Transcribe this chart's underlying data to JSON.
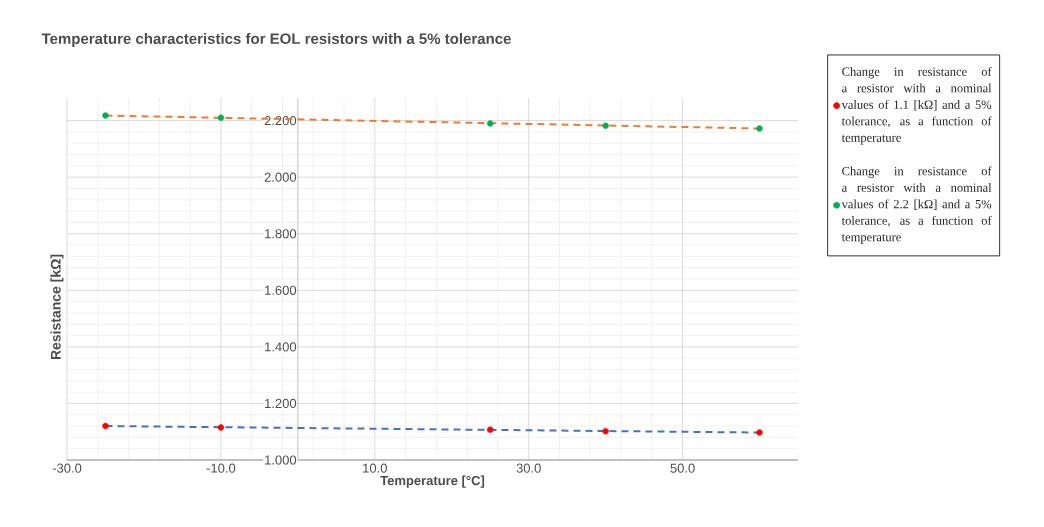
{
  "chart_data": {
    "type": "scatter",
    "title": "Temperature characteristics for EOL resistors with a 5% tolerance",
    "xlabel": "Temperature [°C]",
    "ylabel": "Resistance [kΩ]",
    "xlim": [
      -30,
      65
    ],
    "ylim": [
      1.0,
      2.28
    ],
    "xticks": [
      {
        "value": -30,
        "label": "-30.0"
      },
      {
        "value": -10,
        "label": "-10.0"
      },
      {
        "value": 10,
        "label": "10.0"
      },
      {
        "value": 30,
        "label": "30.0"
      },
      {
        "value": 50,
        "label": "50.0"
      }
    ],
    "yticks": [
      {
        "value": 1.0,
        "label": "1.000"
      },
      {
        "value": 1.2,
        "label": "1.200"
      },
      {
        "value": 1.4,
        "label": "1.400"
      },
      {
        "value": 1.6,
        "label": "1.600"
      },
      {
        "value": 1.8,
        "label": "1.800"
      },
      {
        "value": 2.0,
        "label": "2.000"
      },
      {
        "value": 2.2,
        "label": "2.200"
      }
    ],
    "grid": true,
    "legend": "right",
    "marker": "circle",
    "series": [
      {
        "type": "line",
        "line_style": "dashed",
        "marker": "none",
        "color": "#4472c4",
        "x": [
          -25,
          60
        ],
        "values": [
          1.12,
          1.097
        ]
      },
      {
        "type": "line",
        "line_style": "dashed",
        "marker": "none",
        "color": "#ed7d31",
        "x": [
          -25,
          60
        ],
        "values": [
          2.218,
          2.172
        ]
      },
      {
        "name": "Change in resistance of a resistor with a nominal values of 1.1 [kΩ] and a 5% tolerance, as a function of temperature",
        "color": "#ff0000",
        "x": [
          -25,
          -10,
          25,
          40,
          60
        ],
        "values": [
          1.12,
          1.115,
          1.107,
          1.102,
          1.097
        ]
      },
      {
        "name": "Change in resistance of a resistor with a nominal values of 2.2 [kΩ] and a 5% tolerance, as a function of temperature",
        "color": "#00b050",
        "x": [
          -25,
          -10,
          25,
          40,
          60
        ],
        "values": [
          2.218,
          2.21,
          2.19,
          2.182,
          2.172
        ]
      }
    ]
  }
}
